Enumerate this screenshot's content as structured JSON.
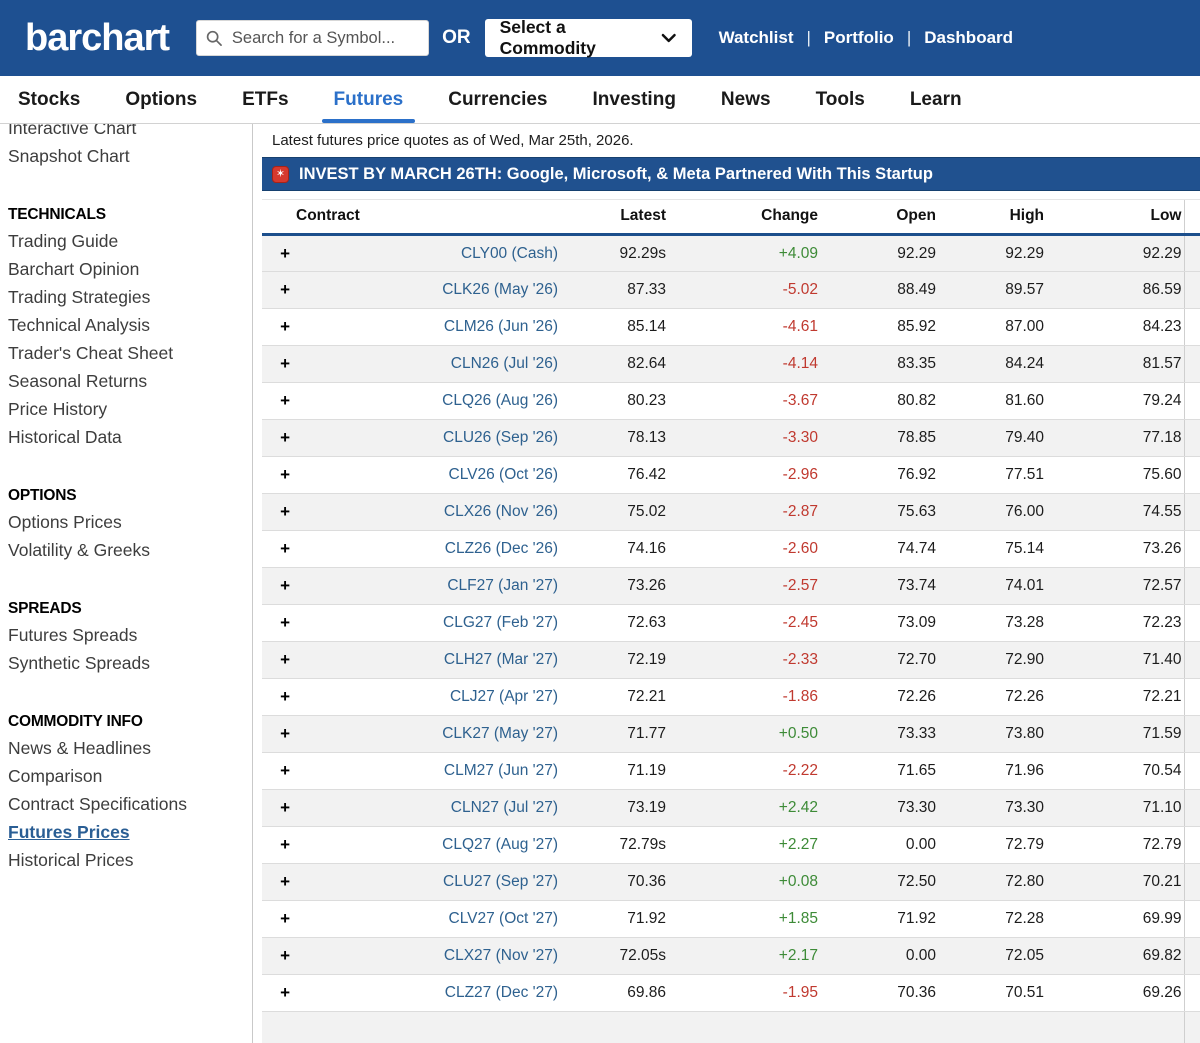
{
  "header": {
    "logo": "barchart",
    "search_placeholder": "Search for a Symbol...",
    "or_label": "OR",
    "commodity_select_label": "Select a Commodity",
    "links": [
      "Watchlist",
      "Portfolio",
      "Dashboard"
    ]
  },
  "nav": {
    "items": [
      "Stocks",
      "Options",
      "ETFs",
      "Futures",
      "Currencies",
      "Investing",
      "News",
      "Tools",
      "Learn"
    ],
    "active": "Futures"
  },
  "sidebar": {
    "top_items": [
      "Interactive Chart",
      "Snapshot Chart"
    ],
    "sections": [
      {
        "title": "TECHNICALS",
        "items": [
          "Trading Guide",
          "Barchart Opinion",
          "Trading Strategies",
          "Technical Analysis",
          "Trader's Cheat Sheet",
          "Seasonal Returns",
          "Price History",
          "Historical Data"
        ]
      },
      {
        "title": "OPTIONS",
        "items": [
          "Options Prices",
          "Volatility & Greeks"
        ]
      },
      {
        "title": "SPREADS",
        "items": [
          "Futures Spreads",
          "Synthetic Spreads"
        ]
      },
      {
        "title": "COMMODITY INFO",
        "items": [
          "News & Headlines",
          "Comparison",
          "Contract Specifications",
          "Futures Prices",
          "Historical Prices"
        ]
      }
    ],
    "active_item": "Futures Prices"
  },
  "main": {
    "quote_date_line": "Latest futures price quotes as of Wed, Mar 25th, 2026.",
    "ad_banner": {
      "icon": "red-star-badge-icon",
      "icon_glyph": "✶",
      "text": "INVEST BY MARCH 26TH: Google, Microsoft, & Meta Partnered With This Startup"
    }
  },
  "table": {
    "columns": [
      "Contract",
      "Latest",
      "Change",
      "Open",
      "High",
      "Low"
    ],
    "rows": [
      {
        "contract": "CLY00 (Cash)",
        "latest": "92.29s",
        "change": "+4.09",
        "open": "92.29",
        "high": "92.29",
        "low": "92.29"
      },
      {
        "contract": "CLK26 (May '26)",
        "latest": "87.33",
        "change": "-5.02",
        "open": "88.49",
        "high": "89.57",
        "low": "86.59"
      },
      {
        "contract": "CLM26 (Jun '26)",
        "latest": "85.14",
        "change": "-4.61",
        "open": "85.92",
        "high": "87.00",
        "low": "84.23"
      },
      {
        "contract": "CLN26 (Jul '26)",
        "latest": "82.64",
        "change": "-4.14",
        "open": "83.35",
        "high": "84.24",
        "low": "81.57"
      },
      {
        "contract": "CLQ26 (Aug '26)",
        "latest": "80.23",
        "change": "-3.67",
        "open": "80.82",
        "high": "81.60",
        "low": "79.24"
      },
      {
        "contract": "CLU26 (Sep '26)",
        "latest": "78.13",
        "change": "-3.30",
        "open": "78.85",
        "high": "79.40",
        "low": "77.18"
      },
      {
        "contract": "CLV26 (Oct '26)",
        "latest": "76.42",
        "change": "-2.96",
        "open": "76.92",
        "high": "77.51",
        "low": "75.60"
      },
      {
        "contract": "CLX26 (Nov '26)",
        "latest": "75.02",
        "change": "-2.87",
        "open": "75.63",
        "high": "76.00",
        "low": "74.55"
      },
      {
        "contract": "CLZ26 (Dec '26)",
        "latest": "74.16",
        "change": "-2.60",
        "open": "74.74",
        "high": "75.14",
        "low": "73.26"
      },
      {
        "contract": "CLF27 (Jan '27)",
        "latest": "73.26",
        "change": "-2.57",
        "open": "73.74",
        "high": "74.01",
        "low": "72.57"
      },
      {
        "contract": "CLG27 (Feb '27)",
        "latest": "72.63",
        "change": "-2.45",
        "open": "73.09",
        "high": "73.28",
        "low": "72.23"
      },
      {
        "contract": "CLH27 (Mar '27)",
        "latest": "72.19",
        "change": "-2.33",
        "open": "72.70",
        "high": "72.90",
        "low": "71.40"
      },
      {
        "contract": "CLJ27 (Apr '27)",
        "latest": "72.21",
        "change": "-1.86",
        "open": "72.26",
        "high": "72.26",
        "low": "72.21"
      },
      {
        "contract": "CLK27 (May '27)",
        "latest": "71.77",
        "change": "+0.50",
        "open": "73.33",
        "high": "73.80",
        "low": "71.59"
      },
      {
        "contract": "CLM27 (Jun '27)",
        "latest": "71.19",
        "change": "-2.22",
        "open": "71.65",
        "high": "71.96",
        "low": "70.54"
      },
      {
        "contract": "CLN27 (Jul '27)",
        "latest": "73.19",
        "change": "+2.42",
        "open": "73.30",
        "high": "73.30",
        "low": "71.10"
      },
      {
        "contract": "CLQ27 (Aug '27)",
        "latest": "72.79s",
        "change": "+2.27",
        "open": "0.00",
        "high": "72.79",
        "low": "72.79"
      },
      {
        "contract": "CLU27 (Sep '27)",
        "latest": "70.36",
        "change": "+0.08",
        "open": "72.50",
        "high": "72.80",
        "low": "70.21"
      },
      {
        "contract": "CLV27 (Oct '27)",
        "latest": "71.92",
        "change": "+1.85",
        "open": "71.92",
        "high": "72.28",
        "low": "69.99"
      },
      {
        "contract": "CLX27 (Nov '27)",
        "latest": "72.05s",
        "change": "+2.17",
        "open": "0.00",
        "high": "72.05",
        "low": "69.82"
      },
      {
        "contract": "CLZ27 (Dec '27)",
        "latest": "69.86",
        "change": "-1.95",
        "open": "70.36",
        "high": "70.51",
        "low": "69.26"
      }
    ]
  },
  "colors": {
    "header_blue": "#1e5091",
    "banner_blue": "#20518f",
    "nav_active_blue": "#2b70c9",
    "link_blue": "#2e618f",
    "sidebar_active_blue": "#2a5e94",
    "up_green": "#3d8b37",
    "down_red": "#c0392f",
    "table_header_border": "#1c4f8c",
    "row_shade": "#f2f2f2",
    "banner_icon_red": "#d6392e"
  }
}
